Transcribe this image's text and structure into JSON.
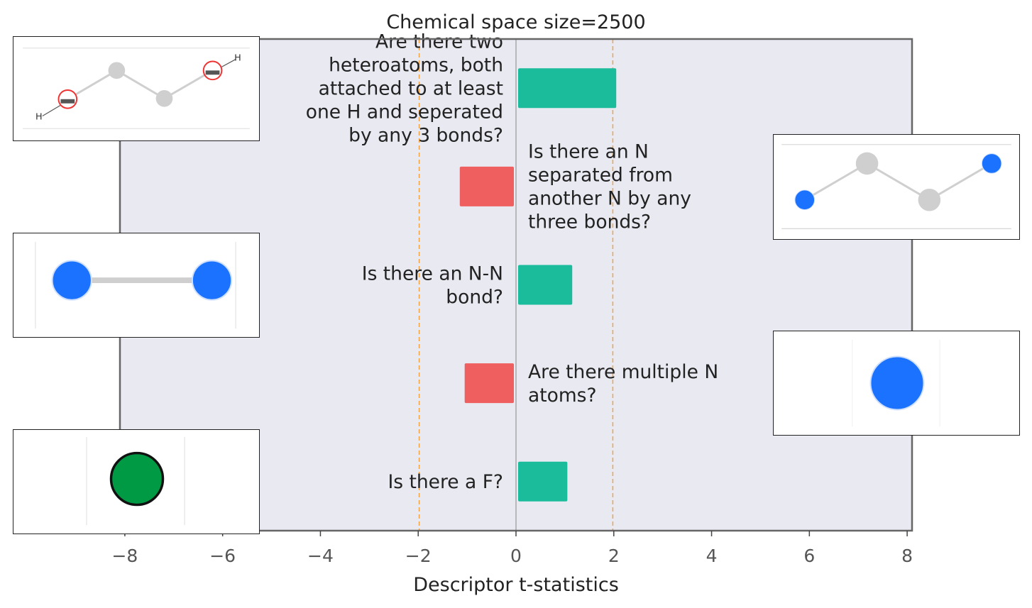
{
  "chart_data": {
    "type": "bar",
    "orientation": "horizontal",
    "title": "Chemical space size=2500",
    "xlabel": "Descriptor t-statistics",
    "ylabel": "",
    "xlim": [
      -8.1,
      8.1
    ],
    "xticks": [
      -8,
      -6,
      -4,
      -2,
      0,
      2,
      4,
      6,
      8
    ],
    "xtick_labels": [
      "−8",
      "−6",
      "−4",
      "−2",
      "0",
      "2",
      "4",
      "6",
      "8"
    ],
    "significance_lines": [
      -1.98,
      1.98
    ],
    "grid": false,
    "bars": [
      {
        "label": [
          "Are there two",
          "heteroatoms, both",
          "attached to at least",
          "one H and seperated",
          "by any 3 bonds?"
        ],
        "value": 2.05,
        "sign": "positive"
      },
      {
        "label": [
          "Is there an N",
          "separated from",
          "another N by any",
          "three bonds?"
        ],
        "value": -1.15,
        "sign": "negative"
      },
      {
        "label": [
          "Is there an N-N",
          "bond?"
        ],
        "value": 1.15,
        "sign": "positive"
      },
      {
        "label": [
          "Are there multiple N",
          "atoms?"
        ],
        "value": -1.05,
        "sign": "negative"
      },
      {
        "label": [
          "Is there a F?"
        ],
        "value": 1.05,
        "sign": "positive"
      }
    ]
  },
  "colors": {
    "positive": "#1abc9c",
    "negative": "#ef5f5f",
    "plot_bg": "#e8e9f1",
    "threshold": "#f5a443",
    "n_atom": "#1a72ff",
    "f_atom": "#009944",
    "carbon": "#cccccc"
  },
  "insets": [
    {
      "name": "inset-heteroatom-path",
      "icon": "molecule-o-c-c-o-icon",
      "atom_label": "H"
    },
    {
      "name": "inset-n-three-bonds",
      "icon": "molecule-n-c-c-n-icon"
    },
    {
      "name": "inset-n-n-bond",
      "icon": "molecule-n-n-icon"
    },
    {
      "name": "inset-multiple-n",
      "icon": "molecule-n-atom-icon"
    },
    {
      "name": "inset-fluorine",
      "icon": "molecule-f-atom-icon"
    }
  ]
}
